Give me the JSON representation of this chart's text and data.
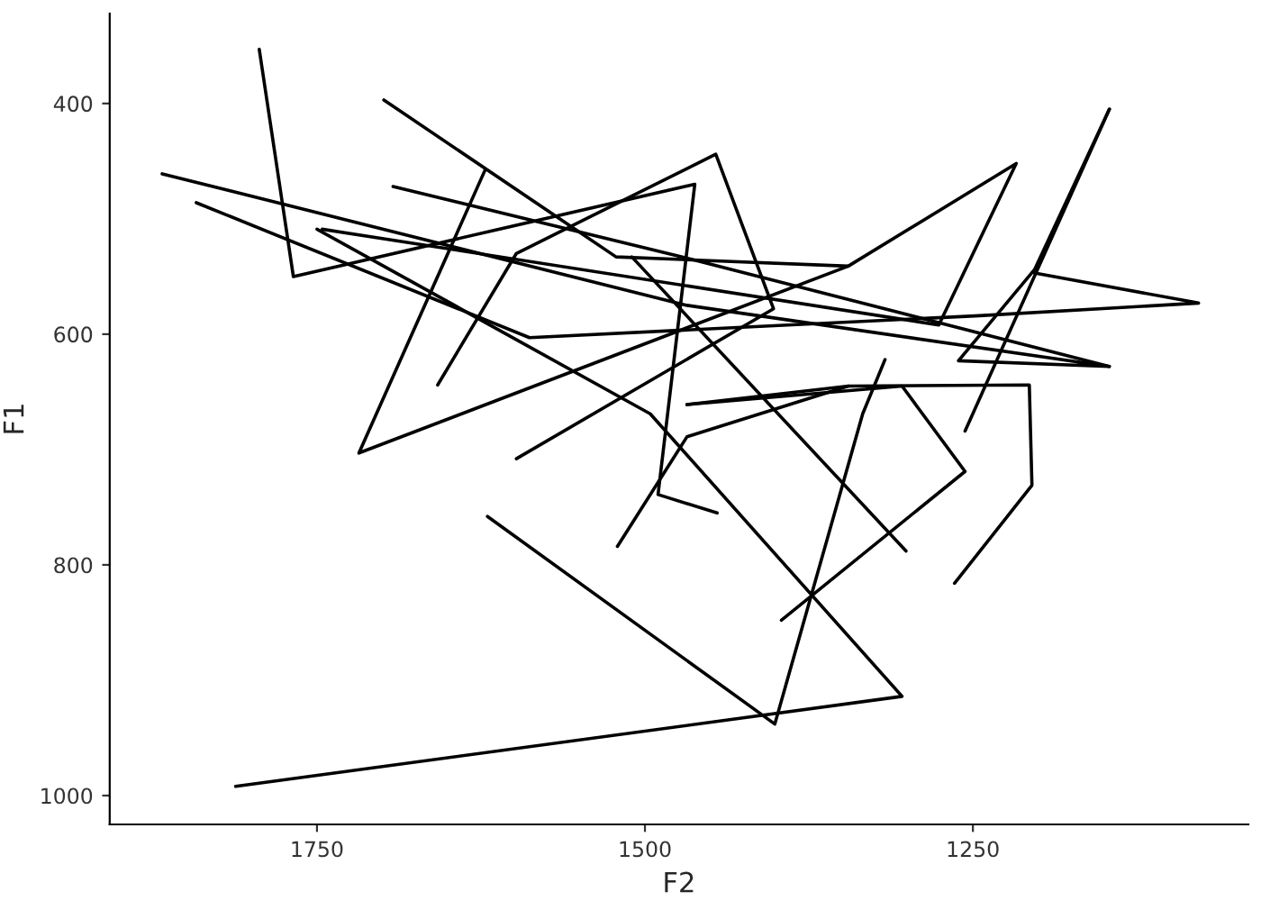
{
  "chart_data": {
    "type": "line",
    "xlabel": "F2",
    "ylabel": "F1",
    "xlim": [
      1908,
      1040
    ],
    "ylim": [
      1025,
      322
    ],
    "xticks": [
      1750,
      1500,
      1250
    ],
    "yticks": [
      400,
      600,
      800,
      1000
    ],
    "grid": false,
    "series": [
      {
        "color": "#000000",
        "x": [
          1794,
          1768,
          1462,
          1490,
          1445
        ],
        "values": [
          353,
          550,
          470,
          739,
          755
        ]
      },
      {
        "color": "#000000",
        "x": [
          1658,
          1598,
          1446,
          1402,
          1598
        ],
        "values": [
          644,
          530,
          444,
          578,
          708
        ]
      },
      {
        "color": "#000000",
        "x": [
          1699,
          1522,
          1345,
          1718,
          1622
        ],
        "values": [
          397,
          533,
          541,
          703,
          458
        ]
      },
      {
        "color": "#000000",
        "x": [
          1746,
          1276,
          1217,
          1345
        ],
        "values": [
          509,
          592,
          452,
          541
        ]
      },
      {
        "color": "#000000",
        "x": [
          1868,
          1468,
          1146,
          1261,
          1203,
          1146
        ],
        "values": [
          461,
          575,
          628,
          623,
          544,
          405
        ]
      },
      {
        "color": "#000000",
        "x": [
          1842,
          1588,
          1245,
          1078,
          1203
        ],
        "values": [
          486,
          603,
          584,
          573,
          547
        ]
      },
      {
        "color": "#000000",
        "x": [
          1812,
          1304,
          1496,
          1750
        ],
        "values": [
          992,
          914,
          669,
          509
        ]
      },
      {
        "color": "#000000",
        "x": [
          1620,
          1401,
          1334,
          1317
        ],
        "values": [
          758,
          938,
          669,
          622
        ]
      },
      {
        "color": "#000000",
        "x": [
          1396,
          1256,
          1304,
          1468
        ],
        "values": [
          848,
          719,
          645,
          661
        ]
      },
      {
        "color": "#000000",
        "x": [
          1264,
          1205,
          1207,
          1345,
          1468
        ],
        "values": [
          816,
          731,
          644,
          645,
          661
        ]
      },
      {
        "color": "#000000",
        "x": [
          1510,
          1301
        ],
        "values": [
          533,
          788
        ]
      },
      {
        "color": "#000000",
        "x": [
          1521,
          1468,
          1345
        ],
        "values": [
          784,
          689,
          645
        ]
      },
      {
        "color": "#000000",
        "x": [
          1256,
          1146
        ],
        "values": [
          684,
          405
        ]
      },
      {
        "color": "#000000",
        "x": [
          1692,
          1468,
          1146
        ],
        "values": [
          472,
          534,
          628
        ]
      }
    ]
  }
}
